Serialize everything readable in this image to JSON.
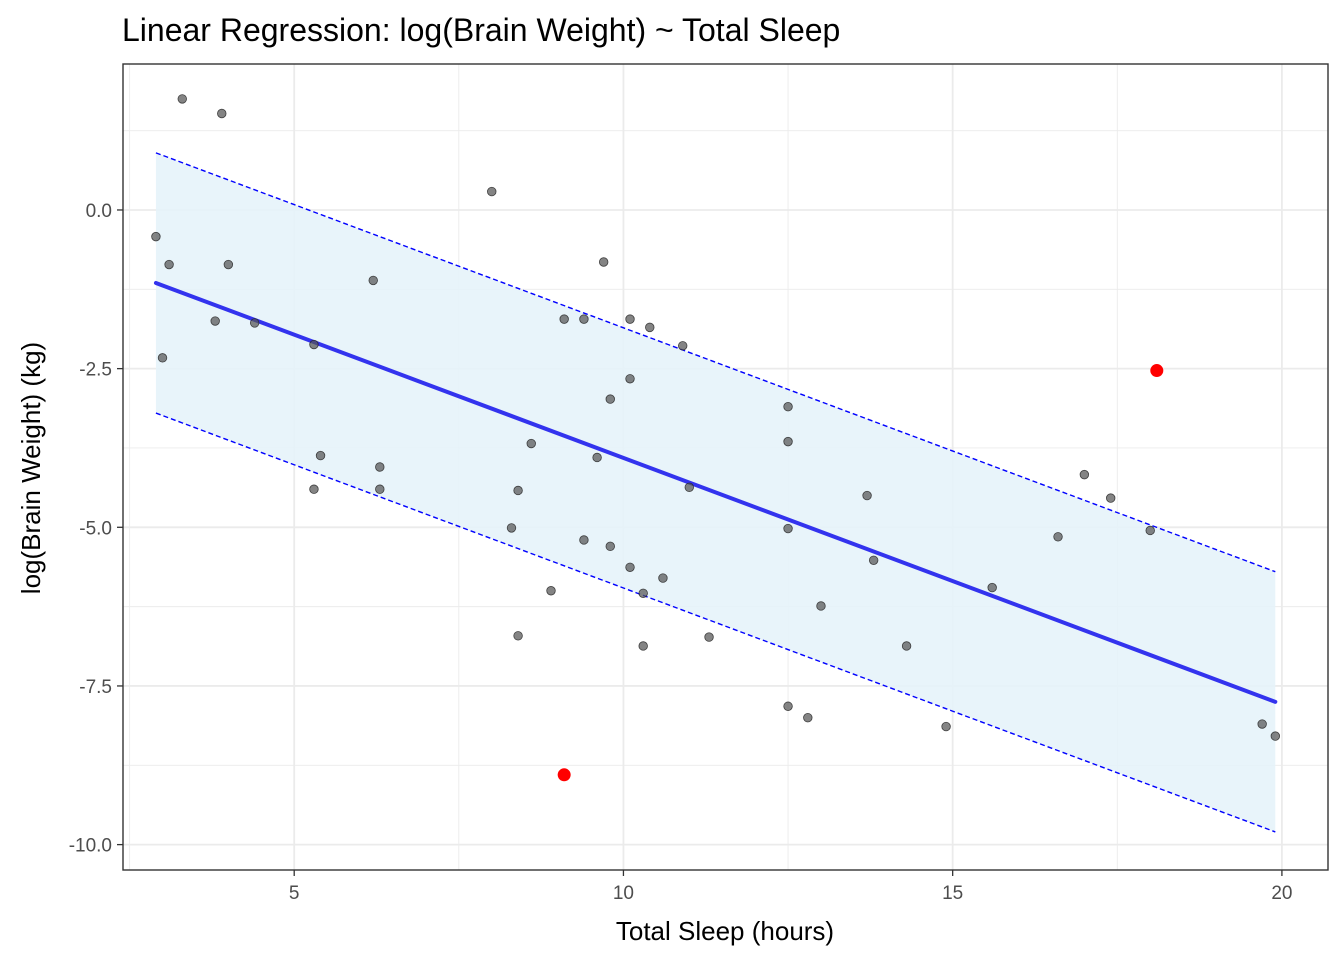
{
  "chart_data": {
    "type": "scatter",
    "title": "Linear Regression: log(Brain Weight) ~ Total Sleep",
    "xlabel": "Total Sleep (hours)",
    "ylabel": "log(Brain Weight) (kg)",
    "xlim": [
      2.4,
      20.7
    ],
    "ylim": [
      -10.4,
      2.3
    ],
    "x_ticks": [
      5,
      10,
      15,
      20
    ],
    "x_tick_labels": [
      "5",
      "10",
      "15",
      "20"
    ],
    "y_ticks": [
      0.0,
      -2.5,
      -5.0,
      -7.5,
      -10.0
    ],
    "y_tick_labels": [
      "0.0",
      "-2.5",
      "-5.0",
      "-7.5",
      "-10.0"
    ],
    "grid": true,
    "legend": "none",
    "colors": {
      "points": "#555555",
      "outliers": "#ff0000",
      "fit_line": "#3333ee",
      "band_fill": "#e6f3f9",
      "band_edges": "#0000ff",
      "grid": "#ebebeb",
      "panel_border": "#333333"
    },
    "fit_line": {
      "x": [
        2.9,
        19.9
      ],
      "y": [
        -1.15,
        -7.75
      ]
    },
    "prediction_band": {
      "x": [
        2.9,
        19.9
      ],
      "upper": [
        0.9,
        -5.7
      ],
      "lower": [
        -3.2,
        -9.8
      ]
    },
    "points": [
      {
        "x": 2.9,
        "y": -0.42
      },
      {
        "x": 3.0,
        "y": -2.33
      },
      {
        "x": 3.1,
        "y": -0.86
      },
      {
        "x": 3.3,
        "y": 1.75
      },
      {
        "x": 3.8,
        "y": -1.75
      },
      {
        "x": 3.9,
        "y": 1.52
      },
      {
        "x": 4.0,
        "y": -0.86
      },
      {
        "x": 4.4,
        "y": -1.78
      },
      {
        "x": 5.3,
        "y": -2.12
      },
      {
        "x": 5.3,
        "y": -4.4
      },
      {
        "x": 5.4,
        "y": -3.87
      },
      {
        "x": 6.2,
        "y": -1.11
      },
      {
        "x": 6.3,
        "y": -4.05
      },
      {
        "x": 6.3,
        "y": -4.4
      },
      {
        "x": 8.0,
        "y": 0.29
      },
      {
        "x": 8.3,
        "y": -5.01
      },
      {
        "x": 8.4,
        "y": -4.42
      },
      {
        "x": 8.4,
        "y": -6.71
      },
      {
        "x": 8.6,
        "y": -3.68
      },
      {
        "x": 8.9,
        "y": -6.0
      },
      {
        "x": 9.1,
        "y": -1.72
      },
      {
        "x": 9.4,
        "y": -1.72
      },
      {
        "x": 9.4,
        "y": -5.2
      },
      {
        "x": 9.6,
        "y": -3.9
      },
      {
        "x": 9.7,
        "y": -0.82
      },
      {
        "x": 9.8,
        "y": -2.98
      },
      {
        "x": 9.8,
        "y": -5.3
      },
      {
        "x": 10.1,
        "y": -1.72
      },
      {
        "x": 10.1,
        "y": -2.66
      },
      {
        "x": 10.1,
        "y": -5.63
      },
      {
        "x": 10.3,
        "y": -6.04
      },
      {
        "x": 10.3,
        "y": -6.87
      },
      {
        "x": 10.4,
        "y": -1.85
      },
      {
        "x": 10.6,
        "y": -5.8
      },
      {
        "x": 10.9,
        "y": -2.14
      },
      {
        "x": 11.0,
        "y": -4.37
      },
      {
        "x": 11.3,
        "y": -6.73
      },
      {
        "x": 12.5,
        "y": -3.1
      },
      {
        "x": 12.5,
        "y": -3.65
      },
      {
        "x": 12.5,
        "y": -5.02
      },
      {
        "x": 12.5,
        "y": -7.82
      },
      {
        "x": 12.8,
        "y": -8.0
      },
      {
        "x": 13.0,
        "y": -6.24
      },
      {
        "x": 13.7,
        "y": -4.5
      },
      {
        "x": 13.8,
        "y": -5.52
      },
      {
        "x": 14.3,
        "y": -6.87
      },
      {
        "x": 14.9,
        "y": -8.14
      },
      {
        "x": 15.6,
        "y": -5.95
      },
      {
        "x": 16.6,
        "y": -5.15
      },
      {
        "x": 17.0,
        "y": -4.17
      },
      {
        "x": 17.4,
        "y": -4.54
      },
      {
        "x": 18.0,
        "y": -5.05
      },
      {
        "x": 19.7,
        "y": -8.1
      },
      {
        "x": 19.9,
        "y": -8.29
      }
    ],
    "outlier_points": [
      {
        "x": 9.1,
        "y": -8.9
      },
      {
        "x": 18.1,
        "y": -2.53
      }
    ]
  }
}
